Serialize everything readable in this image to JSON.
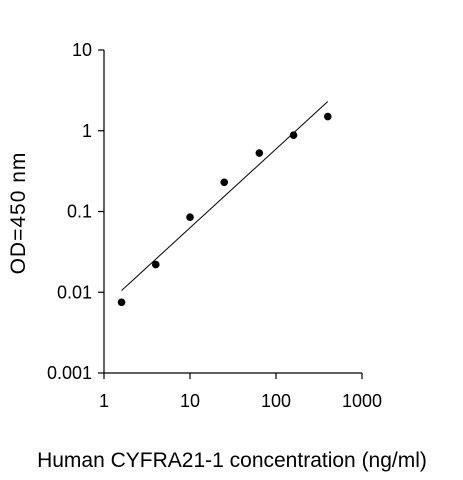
{
  "chart_data": {
    "type": "scatter",
    "title": "",
    "xlabel": "Human CYFRA21-1 concentration (ng/ml)",
    "ylabel": "OD=450 nm",
    "x_scale": "log",
    "y_scale": "log",
    "xlim": [
      1,
      1000
    ],
    "ylim": [
      0.001,
      10
    ],
    "x_ticks": [
      "1",
      "10",
      "100",
      "1000"
    ],
    "y_ticks": [
      "10",
      "1",
      "0.1",
      "0.01",
      "0.001"
    ],
    "grid": false,
    "legend": "none",
    "series": [
      {
        "marker": "circle",
        "color": "#000000",
        "x": [
          1.6,
          4,
          10,
          25,
          64,
          160,
          400
        ],
        "y": [
          0.0075,
          0.022,
          0.085,
          0.23,
          0.53,
          0.88,
          1.5
        ]
      }
    ],
    "trendline": {
      "type": "power",
      "color": "#000000",
      "x": [
        1.6,
        400
      ],
      "y": [
        0.0105,
        2.3
      ]
    }
  }
}
